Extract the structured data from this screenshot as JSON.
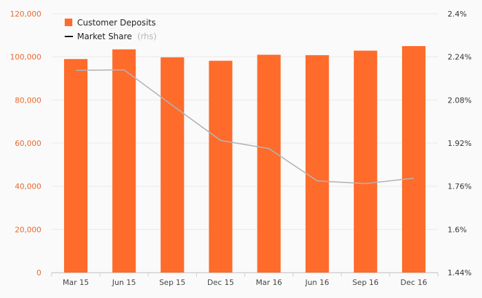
{
  "chart_data": {
    "type": "bar+line",
    "categories": [
      "Mar 15",
      "Jun 15",
      "Sep 15",
      "Dec 15",
      "Mar 16",
      "Jun 16",
      "Sep 16",
      "Dec 16"
    ],
    "series": [
      {
        "name": "Customer Deposits",
        "type": "bar",
        "axis": "left",
        "color": "#fe6b2b",
        "values": [
          99000,
          103500,
          99800,
          98200,
          101000,
          100800,
          102900,
          105000
        ]
      },
      {
        "name": "Market Share",
        "legend_suffix": "(rhs)",
        "type": "line",
        "axis": "right",
        "color": "#b4b4b4",
        "values": [
          2.19,
          2.192,
          2.06,
          1.93,
          1.9,
          1.78,
          1.77,
          1.79
        ]
      }
    ],
    "y_left": {
      "ylim": [
        0,
        120000
      ],
      "ticks": [
        0,
        20000,
        40000,
        60000,
        80000,
        100000,
        120000
      ],
      "tick_labels": [
        "0",
        "20,000",
        "40,000",
        "60,000",
        "80,000",
        "100,000",
        "120,000"
      ],
      "tick_color": "#e8672b"
    },
    "y_right": {
      "ylim": [
        1.44,
        2.4
      ],
      "ticks": [
        1.44,
        1.6,
        1.76,
        1.92,
        2.08,
        2.24,
        2.4
      ],
      "tick_labels": [
        "1.44%",
        "1.6%",
        "1.76%",
        "1.92%",
        "2.08%",
        "2.24%",
        "2.4%"
      ]
    },
    "grid": true,
    "legend_position": "top-left",
    "title": "",
    "xlabel": "",
    "ylabel": ""
  }
}
